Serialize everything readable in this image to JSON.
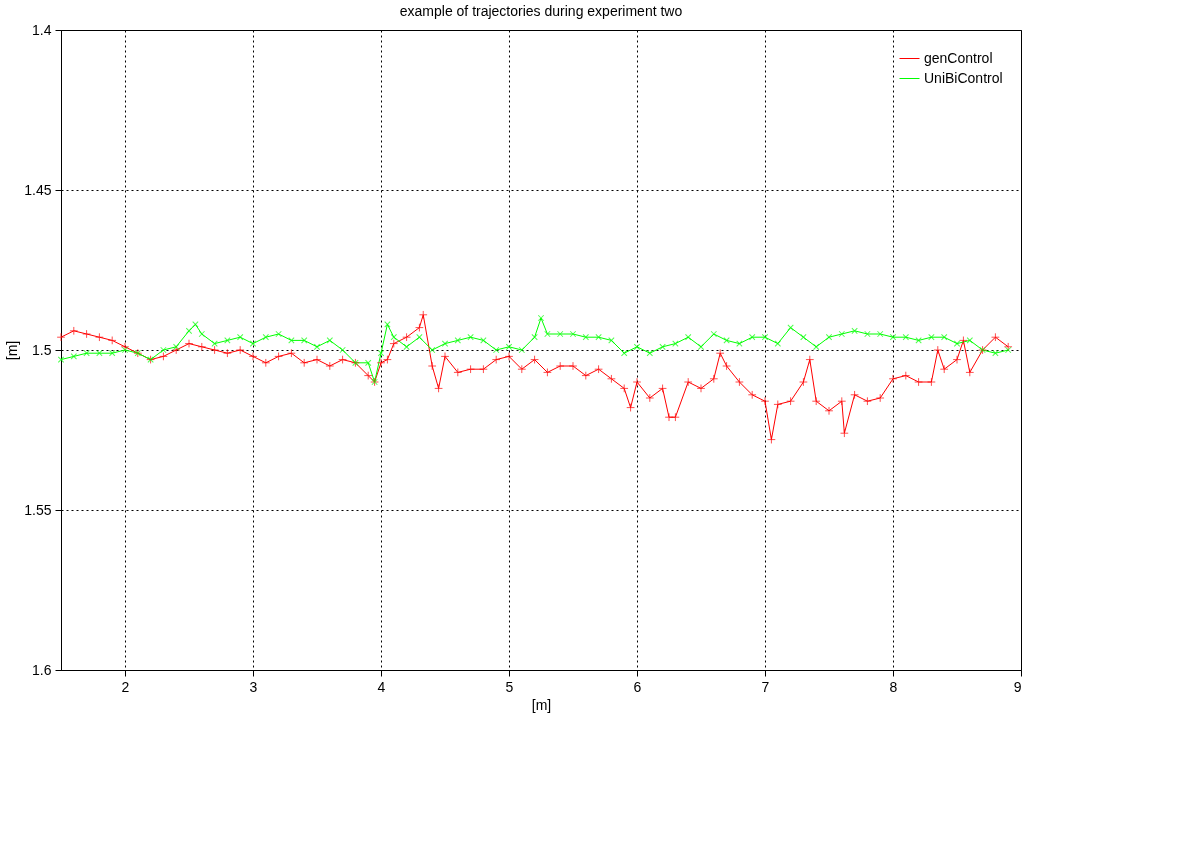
{
  "chart_data": {
    "type": "line",
    "title": "example of trajectories during experiment two",
    "xlabel": "[m]",
    "ylabel": "[m]",
    "xlim": [
      1.5,
      9
    ],
    "xticks": [
      2,
      3,
      4,
      5,
      6,
      7,
      8,
      9
    ],
    "ylim": [
      1.6,
      1.4
    ],
    "yticks": [
      1.4,
      1.45,
      1.5,
      1.55,
      1.6
    ],
    "grid": true,
    "legend": "top right",
    "marker": "cross",
    "series": [
      {
        "name": "genControl",
        "color": "#ff0000",
        "x": [
          1.5,
          1.6,
          1.7,
          1.8,
          1.9,
          2.0,
          2.1,
          2.2,
          2.3,
          2.4,
          2.5,
          2.6,
          2.7,
          2.8,
          2.9,
          3.0,
          3.1,
          3.2,
          3.3,
          3.4,
          3.5,
          3.6,
          3.7,
          3.8,
          3.9,
          3.95,
          4.0,
          4.05,
          4.1,
          4.2,
          4.3,
          4.33,
          4.4,
          4.45,
          4.5,
          4.6,
          4.7,
          4.8,
          4.9,
          5.0,
          5.1,
          5.2,
          5.3,
          5.4,
          5.5,
          5.6,
          5.7,
          5.8,
          5.9,
          5.95,
          6.0,
          6.1,
          6.2,
          6.25,
          6.3,
          6.4,
          6.5,
          6.6,
          6.65,
          6.7,
          6.8,
          6.9,
          7.0,
          7.05,
          7.1,
          7.2,
          7.3,
          7.35,
          7.4,
          7.5,
          7.6,
          7.62,
          7.7,
          7.8,
          7.9,
          8.0,
          8.1,
          8.2,
          8.3,
          8.35,
          8.4,
          8.5,
          8.55,
          8.6,
          8.7,
          8.8,
          8.9
        ],
        "values": [
          1.496,
          1.494,
          1.495,
          1.496,
          1.497,
          1.499,
          1.501,
          1.503,
          1.502,
          1.5,
          1.498,
          1.499,
          1.5,
          1.501,
          1.5,
          1.502,
          1.504,
          1.502,
          1.501,
          1.504,
          1.503,
          1.505,
          1.503,
          1.504,
          1.508,
          1.51,
          1.504,
          1.503,
          1.498,
          1.496,
          1.493,
          1.489,
          1.505,
          1.512,
          1.502,
          1.507,
          1.506,
          1.506,
          1.503,
          1.502,
          1.506,
          1.503,
          1.507,
          1.505,
          1.505,
          1.508,
          1.506,
          1.509,
          1.512,
          1.518,
          1.51,
          1.515,
          1.512,
          1.521,
          1.521,
          1.51,
          1.512,
          1.509,
          1.501,
          1.505,
          1.51,
          1.514,
          1.516,
          1.528,
          1.517,
          1.516,
          1.51,
          1.503,
          1.516,
          1.519,
          1.516,
          1.526,
          1.514,
          1.516,
          1.515,
          1.509,
          1.508,
          1.51,
          1.51,
          1.5,
          1.506,
          1.503,
          1.497,
          1.507,
          1.5,
          1.496,
          1.499
        ]
      },
      {
        "name": "UniBiControl",
        "color": "#00ff00",
        "x": [
          1.5,
          1.6,
          1.7,
          1.8,
          1.9,
          2.0,
          2.1,
          2.2,
          2.3,
          2.4,
          2.5,
          2.55,
          2.6,
          2.7,
          2.8,
          2.9,
          3.0,
          3.1,
          3.2,
          3.3,
          3.4,
          3.5,
          3.6,
          3.7,
          3.8,
          3.9,
          3.95,
          4.0,
          4.05,
          4.1,
          4.2,
          4.3,
          4.4,
          4.5,
          4.6,
          4.7,
          4.8,
          4.9,
          5.0,
          5.1,
          5.2,
          5.25,
          5.3,
          5.4,
          5.5,
          5.6,
          5.7,
          5.8,
          5.9,
          6.0,
          6.1,
          6.2,
          6.3,
          6.4,
          6.5,
          6.6,
          6.7,
          6.8,
          6.9,
          7.0,
          7.1,
          7.2,
          7.3,
          7.4,
          7.5,
          7.6,
          7.7,
          7.8,
          7.9,
          8.0,
          8.1,
          8.2,
          8.3,
          8.4,
          8.5,
          8.6,
          8.7,
          8.8,
          8.9
        ],
        "values": [
          1.503,
          1.502,
          1.501,
          1.501,
          1.501,
          1.5,
          1.501,
          1.503,
          1.5,
          1.499,
          1.494,
          1.492,
          1.495,
          1.498,
          1.497,
          1.496,
          1.498,
          1.496,
          1.495,
          1.497,
          1.497,
          1.499,
          1.497,
          1.5,
          1.504,
          1.504,
          1.51,
          1.501,
          1.492,
          1.496,
          1.499,
          1.496,
          1.5,
          1.498,
          1.497,
          1.496,
          1.497,
          1.5,
          1.499,
          1.5,
          1.496,
          1.49,
          1.495,
          1.495,
          1.495,
          1.496,
          1.496,
          1.497,
          1.501,
          1.499,
          1.501,
          1.499,
          1.498,
          1.496,
          1.499,
          1.495,
          1.497,
          1.498,
          1.496,
          1.496,
          1.498,
          1.493,
          1.496,
          1.499,
          1.496,
          1.495,
          1.494,
          1.495,
          1.495,
          1.496,
          1.496,
          1.497,
          1.496,
          1.496,
          1.498,
          1.497,
          1.5,
          1.501,
          1.5
        ]
      }
    ]
  }
}
